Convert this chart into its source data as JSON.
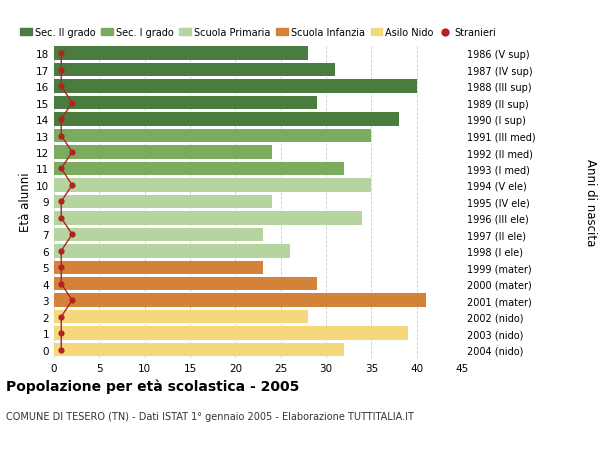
{
  "ages": [
    18,
    17,
    16,
    15,
    14,
    13,
    12,
    11,
    10,
    9,
    8,
    7,
    6,
    5,
    4,
    3,
    2,
    1,
    0
  ],
  "values": [
    28,
    31,
    40,
    29,
    38,
    35,
    24,
    32,
    35,
    24,
    34,
    23,
    26,
    23,
    29,
    41,
    28,
    39,
    32
  ],
  "stranieri_x": [
    0.8,
    0.8,
    0.8,
    2.0,
    0.8,
    0.8,
    2.0,
    0.8,
    2.0,
    0.8,
    0.8,
    2.0,
    0.8,
    0.8,
    0.8,
    2.0,
    0.8,
    0.8,
    0.8
  ],
  "right_labels": [
    "1986 (V sup)",
    "1987 (IV sup)",
    "1988 (III sup)",
    "1989 (II sup)",
    "1990 (I sup)",
    "1991 (III med)",
    "1992 (II med)",
    "1993 (I med)",
    "1994 (V ele)",
    "1995 (IV ele)",
    "1996 (III ele)",
    "1997 (II ele)",
    "1998 (I ele)",
    "1999 (mater)",
    "2000 (mater)",
    "2001 (mater)",
    "2002 (nido)",
    "2003 (nido)",
    "2004 (nido)"
  ],
  "bar_colors": [
    "#4a7c3f",
    "#4a7c3f",
    "#4a7c3f",
    "#4a7c3f",
    "#4a7c3f",
    "#7aab5e",
    "#7aab5e",
    "#7aab5e",
    "#b5d4a0",
    "#b5d4a0",
    "#b5d4a0",
    "#b5d4a0",
    "#b5d4a0",
    "#d4823a",
    "#d4823a",
    "#d4823a",
    "#f5d87c",
    "#f5d87c",
    "#f5d87c"
  ],
  "color_stranieri": "#b22222",
  "xlim": [
    0,
    45
  ],
  "xticks": [
    0,
    5,
    10,
    15,
    20,
    25,
    30,
    35,
    40,
    45
  ],
  "ylim": [
    -0.5,
    18.5
  ],
  "title": "Popolazione per età scolastica - 2005",
  "subtitle": "COMUNE DI TESERO (TN) - Dati ISTAT 1° gennaio 2005 - Elaborazione TUTTITALIA.IT",
  "ylabel": "Età alunni",
  "right_ylabel": "Anni di nascita",
  "legend": [
    {
      "label": "Sec. II grado",
      "color": "#4a7c3f",
      "type": "patch"
    },
    {
      "label": "Sec. I grado",
      "color": "#7aab5e",
      "type": "patch"
    },
    {
      "label": "Scuola Primaria",
      "color": "#b5d4a0",
      "type": "patch"
    },
    {
      "label": "Scuola Infanzia",
      "color": "#d4823a",
      "type": "patch"
    },
    {
      "label": "Asilo Nido",
      "color": "#f5d87c",
      "type": "patch"
    },
    {
      "label": "Stranieri",
      "color": "#b22222",
      "type": "dot"
    }
  ],
  "bg_color": "#ffffff",
  "grid_color": "#cccccc"
}
